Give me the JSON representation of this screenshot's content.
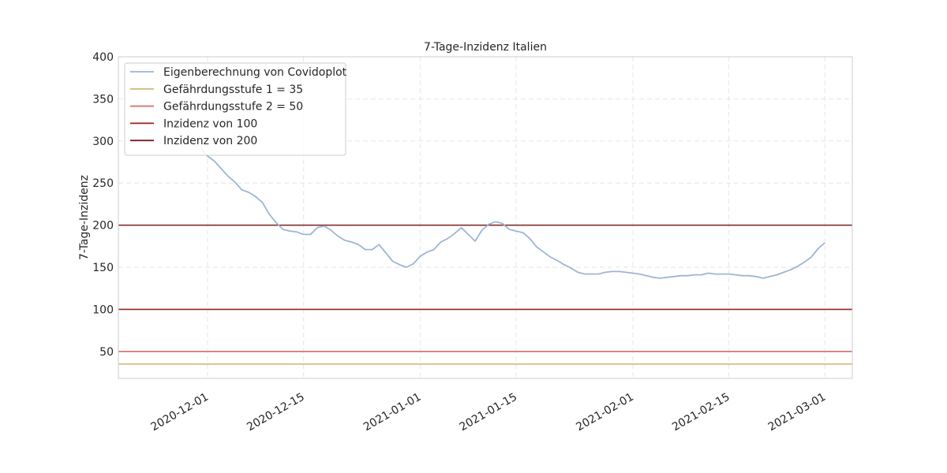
{
  "chart_data": {
    "type": "line",
    "title": "7-Tage-Inzidenz Italien",
    "xlabel": "",
    "ylabel": "7-Tage-Inzidenz",
    "xlim": [
      "2020-11-18",
      "2021-03-05"
    ],
    "ylim": [
      18,
      400
    ],
    "y_ticks": [
      50,
      100,
      150,
      200,
      250,
      300,
      350,
      400
    ],
    "x_ticks": [
      "2020-12-01",
      "2020-12-15",
      "2021-01-01",
      "2021-01-15",
      "2021-02-01",
      "2021-02-15",
      "2021-03-01"
    ],
    "grid": true,
    "legend_position": "top-left",
    "series": [
      {
        "name": "Eigenberechnung von Covidoplot",
        "color": "#9fb4d6",
        "x": [
          "2020-11-30",
          "2020-12-01",
          "2020-12-02",
          "2020-12-03",
          "2020-12-04",
          "2020-12-05",
          "2020-12-06",
          "2020-12-07",
          "2020-12-08",
          "2020-12-09",
          "2020-12-10",
          "2020-12-11",
          "2020-12-12",
          "2020-12-13",
          "2020-12-14",
          "2020-12-15",
          "2020-12-16",
          "2020-12-17",
          "2020-12-18",
          "2020-12-19",
          "2020-12-20",
          "2020-12-21",
          "2020-12-22",
          "2020-12-23",
          "2020-12-24",
          "2020-12-25",
          "2020-12-26",
          "2020-12-27",
          "2020-12-28",
          "2020-12-29",
          "2020-12-30",
          "2020-12-31",
          "2021-01-01",
          "2021-01-02",
          "2021-01-03",
          "2021-01-04",
          "2021-01-05",
          "2021-01-06",
          "2021-01-07",
          "2021-01-08",
          "2021-01-09",
          "2021-01-10",
          "2021-01-11",
          "2021-01-12",
          "2021-01-13",
          "2021-01-14",
          "2021-01-15",
          "2021-01-16",
          "2021-01-17",
          "2021-01-18",
          "2021-01-19",
          "2021-01-20",
          "2021-01-21",
          "2021-01-22",
          "2021-01-23",
          "2021-01-24",
          "2021-01-25",
          "2021-01-26",
          "2021-01-27",
          "2021-01-28",
          "2021-01-29",
          "2021-01-30",
          "2021-01-31",
          "2021-02-01",
          "2021-02-02",
          "2021-02-03",
          "2021-02-04",
          "2021-02-05",
          "2021-02-06",
          "2021-02-07",
          "2021-02-08",
          "2021-02-09",
          "2021-02-10",
          "2021-02-11",
          "2021-02-12",
          "2021-02-13",
          "2021-02-14",
          "2021-02-15",
          "2021-02-16",
          "2021-02-17",
          "2021-02-18",
          "2021-02-19",
          "2021-02-20",
          "2021-02-21",
          "2021-02-22",
          "2021-02-23",
          "2021-02-24",
          "2021-02-25",
          "2021-02-26",
          "2021-02-27",
          "2021-02-28",
          "2021-03-01"
        ],
        "values": [
          292,
          282,
          276,
          267,
          258,
          251,
          242,
          239,
          234,
          227,
          213,
          203,
          195,
          193,
          192,
          189,
          189,
          197,
          199,
          194,
          187,
          182,
          180,
          177,
          171,
          171,
          177,
          167,
          157,
          153,
          150,
          154,
          163,
          168,
          171,
          180,
          184,
          190,
          197,
          189,
          181,
          194,
          201,
          204,
          202,
          195,
          193,
          191,
          184,
          174,
          168,
          162,
          158,
          153,
          149,
          144,
          142,
          142,
          142,
          144,
          145,
          145,
          144,
          143,
          142,
          140,
          138,
          137,
          138,
          139,
          140,
          140,
          141,
          141,
          143,
          142,
          142,
          142,
          141,
          140,
          140,
          139,
          137,
          139,
          141,
          144,
          147,
          151,
          156,
          162,
          172,
          179
        ]
      },
      {
        "name": "Gefährdungsstufe 1 = 35",
        "color": "#d2b97a",
        "value": 35
      },
      {
        "name": "Gefährdungsstufe 2 = 50",
        "color": "#d86b6b",
        "value": 50
      },
      {
        "name": "Inzidenz von 100",
        "color": "#9b2222",
        "value": 100
      },
      {
        "name": "Inzidenz von 200",
        "color": "#7a1e1e",
        "value": 200
      }
    ]
  }
}
